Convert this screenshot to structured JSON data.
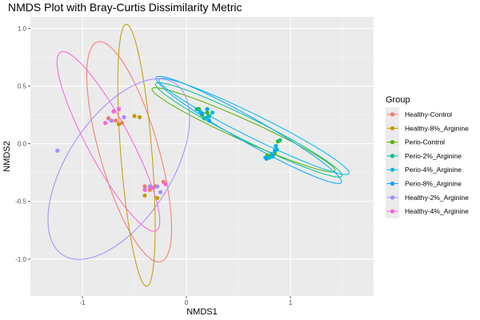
{
  "chart_data": {
    "type": "scatter",
    "title": "NMDS Plot with Bray-Curtis Dissimilarity Metric",
    "xlabel": "NMDS1",
    "ylabel": "NMDS2",
    "xlim": [
      -1.5,
      1.8
    ],
    "ylim": [
      -1.32,
      1.1
    ],
    "xticks": [
      -1,
      0,
      1
    ],
    "yticks": [
      -1.0,
      -0.5,
      0.0,
      0.5,
      1.0
    ],
    "xtick_labels": [
      "-1",
      "0",
      "1"
    ],
    "ytick_labels": [
      "-1.0",
      "-0.5",
      "0.0",
      "0.5",
      "1.0"
    ],
    "grid": true,
    "legend_title": "Group",
    "legend_position": "right",
    "series": [
      {
        "name": "Healthy-Control",
        "color": "#F8766D",
        "points": [
          [
            -0.75,
            0.22
          ],
          [
            -0.68,
            0.2
          ],
          [
            -0.62,
            0.18
          ],
          [
            -0.4,
            -0.37
          ],
          [
            -0.35,
            -0.4
          ],
          [
            -0.22,
            -0.33
          ]
        ],
        "ellipse": {
          "center": [
            -0.55,
            -0.07
          ],
          "rx": 0.28,
          "ry": 1.0,
          "angle": 18
        }
      },
      {
        "name": "Healthy-8%_Arginine",
        "color": "#C49A00",
        "points": [
          [
            -0.5,
            0.24
          ],
          [
            -0.45,
            0.23
          ],
          [
            -0.4,
            -0.45
          ],
          [
            -0.28,
            -0.47
          ],
          [
            -0.3,
            -0.37
          ],
          [
            -0.65,
            0.17
          ]
        ],
        "ellipse": {
          "center": [
            -0.48,
            -0.1
          ],
          "rx": 0.15,
          "ry": 1.14,
          "angle": 5
        }
      },
      {
        "name": "Perio-Control",
        "color": "#53B400",
        "points": [
          [
            0.12,
            0.3
          ],
          [
            0.15,
            0.25
          ],
          [
            0.2,
            0.27
          ],
          [
            0.78,
            -0.1
          ],
          [
            0.85,
            -0.08
          ],
          [
            0.88,
            0.02
          ]
        ],
        "ellipse": {
          "center": [
            0.55,
            0.12
          ],
          "rx": 0.95,
          "ry": 0.09,
          "angle": -22
        }
      },
      {
        "name": "Perio-2%_Arginine",
        "color": "#00C094",
        "points": [
          [
            0.1,
            0.3
          ],
          [
            0.17,
            0.22
          ],
          [
            0.22,
            0.24
          ],
          [
            0.8,
            -0.12
          ],
          [
            0.87,
            -0.05
          ],
          [
            0.9,
            0.03
          ]
        ],
        "ellipse": {
          "center": [
            0.6,
            0.12
          ],
          "rx": 0.98,
          "ry": 0.1,
          "angle": -24
        }
      },
      {
        "name": "Perio-4%_Arginine",
        "color": "#00B6EB",
        "points": [
          [
            0.13,
            0.28
          ],
          [
            0.2,
            0.23
          ],
          [
            0.25,
            0.27
          ],
          [
            0.76,
            -0.12
          ],
          [
            0.82,
            -0.09
          ],
          [
            0.86,
            -0.02
          ]
        ],
        "ellipse": {
          "center": [
            0.65,
            0.15
          ],
          "rx": 1.0,
          "ry": 0.1,
          "angle": -24
        }
      },
      {
        "name": "Perio-8%_Arginine",
        "color": "#06A4FF",
        "points": [
          [
            0.15,
            0.26
          ],
          [
            0.2,
            0.3
          ],
          [
            0.22,
            0.2
          ],
          [
            0.77,
            -0.13
          ],
          [
            0.83,
            -0.11
          ],
          [
            0.85,
            -0.06
          ]
        ],
        "ellipse": {
          "center": [
            0.6,
            0.12
          ],
          "rx": 1.0,
          "ry": 0.11,
          "angle": -27
        }
      },
      {
        "name": "Healthy-2%_Arginine",
        "color": "#A58AFF",
        "points": [
          [
            -1.24,
            -0.06
          ],
          [
            -0.72,
            0.2
          ],
          [
            -0.25,
            -0.42
          ],
          [
            -0.28,
            -0.37
          ],
          [
            -0.35,
            -0.37
          ],
          [
            -0.6,
            0.23
          ]
        ],
        "ellipse": {
          "center": [
            -0.65,
            -0.22
          ],
          "rx": 0.48,
          "ry": 0.92,
          "angle": -38
        }
      },
      {
        "name": "Healthy-4%_Arginine",
        "color": "#FB61D7",
        "points": [
          [
            -0.7,
            0.28
          ],
          [
            -0.65,
            0.3
          ],
          [
            -0.78,
            0.18
          ],
          [
            -0.4,
            -0.4
          ],
          [
            -0.32,
            -0.38
          ],
          [
            -0.2,
            -0.35
          ]
        ],
        "ellipse": {
          "center": [
            -0.75,
            0.02
          ],
          "rx": 0.2,
          "ry": 0.9,
          "angle": 31
        }
      }
    ]
  }
}
